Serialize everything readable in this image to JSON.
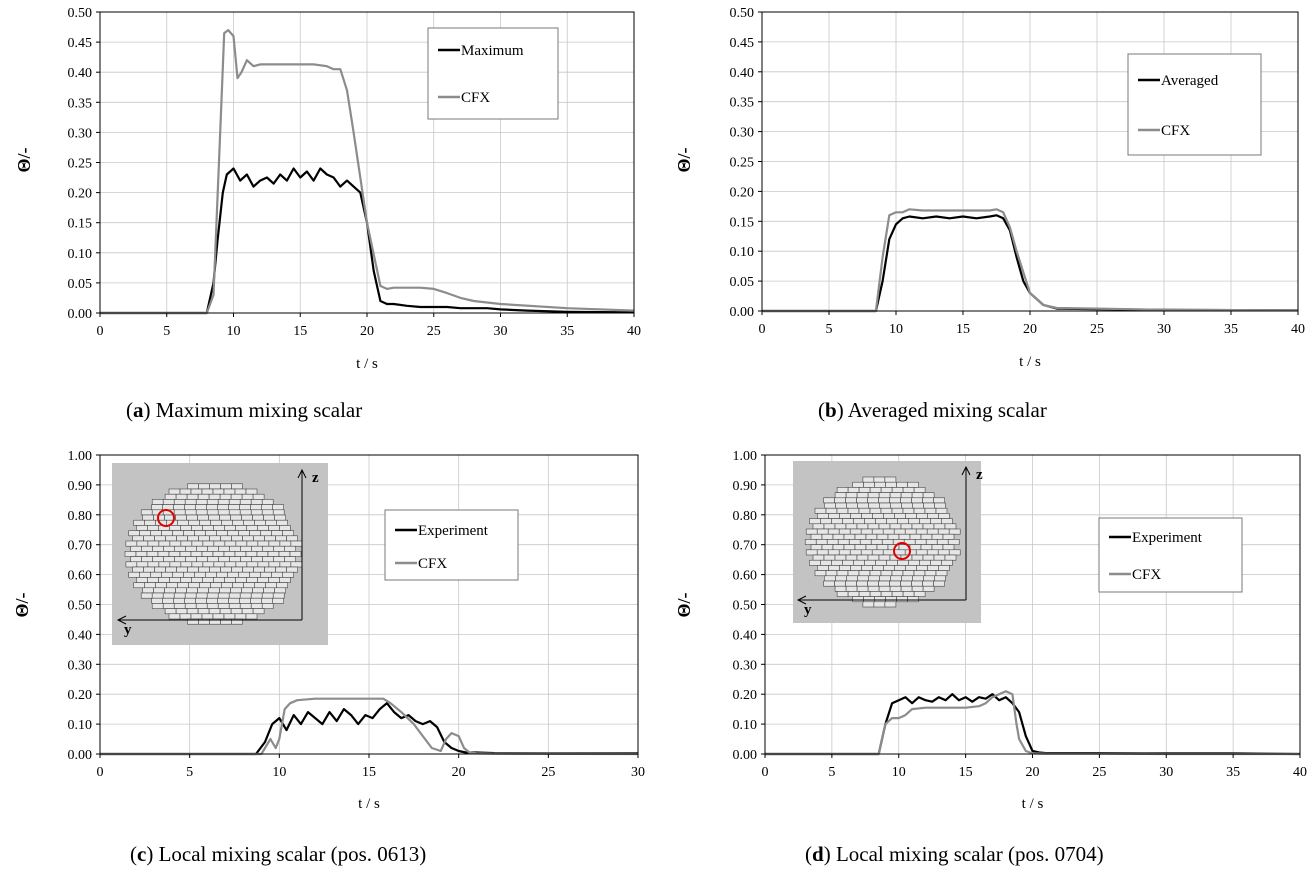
{
  "chart_data": [
    {
      "id": "a",
      "type": "line",
      "caption_letter": "a",
      "caption_text": "Maximum mixing scalar",
      "xlabel": "t / s",
      "ylabel": "Θ/-",
      "xlim": [
        0,
        40
      ],
      "ylim": [
        0,
        0.5
      ],
      "xticks": [
        0,
        5,
        10,
        15,
        20,
        25,
        30,
        35,
        40
      ],
      "yticks": [
        "0.00",
        "0.05",
        "0.10",
        "0.15",
        "0.20",
        "0.25",
        "0.30",
        "0.35",
        "0.40",
        "0.45",
        "0.50"
      ],
      "legend_position": "top-right",
      "series": [
        {
          "name": "Maximum",
          "color": "#000000",
          "x": [
            0,
            8,
            8.5,
            8.8,
            9.2,
            9.5,
            10,
            10.5,
            11,
            11.5,
            12,
            12.5,
            13,
            13.5,
            14,
            14.5,
            15,
            15.5,
            16,
            16.5,
            17,
            17.5,
            18,
            18.5,
            19,
            19.5,
            20,
            20.5,
            21,
            21.5,
            22,
            23,
            24,
            25,
            26,
            27,
            28,
            29,
            30,
            32,
            35,
            40
          ],
          "y": [
            0,
            0,
            0.05,
            0.12,
            0.2,
            0.23,
            0.24,
            0.22,
            0.23,
            0.21,
            0.22,
            0.225,
            0.215,
            0.23,
            0.22,
            0.24,
            0.225,
            0.235,
            0.22,
            0.24,
            0.23,
            0.225,
            0.21,
            0.22,
            0.21,
            0.2,
            0.15,
            0.07,
            0.02,
            0.015,
            0.015,
            0.012,
            0.01,
            0.01,
            0.01,
            0.008,
            0.008,
            0.008,
            0.006,
            0.004,
            0.002,
            0.001
          ]
        },
        {
          "name": "CFX",
          "color": "#8c8c8c",
          "x": [
            0,
            8,
            8.5,
            9,
            9.3,
            9.6,
            10,
            10.3,
            10.6,
            11,
            11.5,
            12,
            14,
            16,
            17,
            17.5,
            18,
            18.5,
            19,
            20,
            21,
            21.5,
            22,
            23,
            24,
            25,
            26,
            27,
            28,
            30,
            35,
            40
          ],
          "y": [
            0,
            0,
            0.03,
            0.3,
            0.465,
            0.47,
            0.46,
            0.39,
            0.4,
            0.42,
            0.41,
            0.413,
            0.413,
            0.413,
            0.41,
            0.405,
            0.405,
            0.37,
            0.3,
            0.15,
            0.045,
            0.04,
            0.042,
            0.042,
            0.042,
            0.04,
            0.033,
            0.025,
            0.02,
            0.015,
            0.008,
            0.004
          ]
        }
      ]
    },
    {
      "id": "b",
      "type": "line",
      "caption_letter": "b",
      "caption_text": "Averaged mixing scalar",
      "xlabel": "t / s",
      "ylabel": "Θ/-",
      "xlim": [
        0,
        40
      ],
      "ylim": [
        0,
        0.5
      ],
      "xticks": [
        0,
        5,
        10,
        15,
        20,
        25,
        30,
        35,
        40
      ],
      "yticks": [
        "0.00",
        "0.05",
        "0.10",
        "0.15",
        "0.20",
        "0.25",
        "0.30",
        "0.35",
        "0.40",
        "0.45",
        "0.50"
      ],
      "legend_position": "top-right",
      "series": [
        {
          "name": "Averaged",
          "color": "#000000",
          "x": [
            0,
            8.5,
            9,
            9.5,
            10,
            10.5,
            11,
            12,
            13,
            14,
            15,
            16,
            17,
            17.5,
            18,
            18.5,
            19,
            19.5,
            20,
            21,
            22,
            25,
            30,
            40
          ],
          "y": [
            0,
            0,
            0.05,
            0.12,
            0.145,
            0.155,
            0.158,
            0.155,
            0.158,
            0.155,
            0.158,
            0.155,
            0.158,
            0.16,
            0.155,
            0.135,
            0.09,
            0.05,
            0.03,
            0.01,
            0.004,
            0.003,
            0.002,
            0.001
          ]
        },
        {
          "name": "CFX",
          "color": "#8c8c8c",
          "x": [
            0,
            8.5,
            9,
            9.5,
            10,
            10.5,
            11,
            12,
            14,
            16,
            17,
            17.5,
            18,
            18.5,
            19,
            20,
            21,
            22,
            25,
            30,
            40
          ],
          "y": [
            0,
            0,
            0.09,
            0.16,
            0.165,
            0.165,
            0.17,
            0.168,
            0.168,
            0.168,
            0.168,
            0.17,
            0.165,
            0.14,
            0.1,
            0.03,
            0.01,
            0.005,
            0.004,
            0.002,
            0.001
          ]
        }
      ]
    },
    {
      "id": "c",
      "type": "line",
      "caption_letter": "c",
      "caption_text": "Local mixing scalar (pos. 0613)",
      "xlabel": "t / s",
      "ylabel": "Θ/-",
      "xlim": [
        0,
        30
      ],
      "ylim": [
        0,
        1.0
      ],
      "xticks": [
        0,
        5,
        10,
        15,
        20,
        25,
        30
      ],
      "yticks": [
        "0.00",
        "0.10",
        "0.20",
        "0.30",
        "0.40",
        "0.50",
        "0.60",
        "0.70",
        "0.80",
        "0.90",
        "1.00"
      ],
      "legend_position": "top-right",
      "inset": {
        "axis_y": "y",
        "axis_z": "z",
        "marker_color": "#e00000"
      },
      "series": [
        {
          "name": "Experiment",
          "color": "#000000",
          "x": [
            0,
            8.7,
            9.2,
            9.6,
            10,
            10.4,
            10.8,
            11.2,
            11.6,
            12,
            12.4,
            12.8,
            13.2,
            13.6,
            14,
            14.4,
            14.8,
            15.2,
            15.6,
            16,
            16.4,
            16.8,
            17.2,
            17.6,
            18,
            18.4,
            18.8,
            19.2,
            19.6,
            20,
            20.4,
            21,
            22,
            25,
            30
          ],
          "y": [
            0,
            0,
            0.04,
            0.1,
            0.12,
            0.08,
            0.13,
            0.1,
            0.14,
            0.12,
            0.1,
            0.14,
            0.11,
            0.15,
            0.13,
            0.1,
            0.13,
            0.12,
            0.15,
            0.17,
            0.14,
            0.12,
            0.13,
            0.11,
            0.1,
            0.11,
            0.09,
            0.04,
            0.02,
            0.01,
            0.005,
            0.005,
            0.003,
            0.002,
            0.002
          ]
        },
        {
          "name": "CFX",
          "color": "#8c8c8c",
          "x": [
            0,
            9,
            9.5,
            9.8,
            10,
            10.3,
            10.6,
            11,
            12,
            13,
            14,
            15,
            15.8,
            16.2,
            16.8,
            17.5,
            18,
            18.5,
            19,
            19.3,
            19.6,
            20,
            20.3,
            20.6,
            21,
            22,
            30
          ],
          "y": [
            0,
            0,
            0.05,
            0.02,
            0.05,
            0.15,
            0.17,
            0.18,
            0.185,
            0.185,
            0.185,
            0.185,
            0.185,
            0.17,
            0.14,
            0.1,
            0.06,
            0.02,
            0.01,
            0.05,
            0.07,
            0.06,
            0.02,
            0.005,
            0.002,
            0.001,
            0.0
          ]
        }
      ]
    },
    {
      "id": "d",
      "type": "line",
      "caption_letter": "d",
      "caption_text": "Local mixing scalar (pos. 0704)",
      "xlabel": "t / s",
      "ylabel": "Θ/-",
      "xlim": [
        0,
        40
      ],
      "ylim": [
        0,
        1.0
      ],
      "xticks": [
        0,
        5,
        10,
        15,
        20,
        25,
        30,
        35,
        40
      ],
      "yticks": [
        "0.00",
        "0.10",
        "0.20",
        "0.30",
        "0.40",
        "0.50",
        "0.60",
        "0.70",
        "0.80",
        "0.90",
        "1.00"
      ],
      "legend_position": "top-right",
      "inset": {
        "axis_y": "y",
        "axis_z": "z",
        "marker_color": "#e00000"
      },
      "series": [
        {
          "name": "Experiment",
          "color": "#000000",
          "x": [
            0,
            8.5,
            9,
            9.5,
            10,
            10.5,
            11,
            11.5,
            12,
            12.5,
            13,
            13.5,
            14,
            14.5,
            15,
            15.5,
            16,
            16.5,
            17,
            17.5,
            18,
            18.5,
            19,
            19.5,
            20,
            20.5,
            21,
            25,
            30,
            35,
            40
          ],
          "y": [
            0,
            0,
            0.1,
            0.17,
            0.18,
            0.19,
            0.17,
            0.19,
            0.18,
            0.175,
            0.19,
            0.18,
            0.2,
            0.18,
            0.19,
            0.175,
            0.19,
            0.185,
            0.2,
            0.18,
            0.19,
            0.17,
            0.14,
            0.06,
            0.01,
            0.005,
            0.003,
            0.003,
            0.002,
            0.002,
            0.0
          ]
        },
        {
          "name": "CFX",
          "color": "#8c8c8c",
          "x": [
            0,
            8.5,
            9,
            9.5,
            10,
            10.5,
            11,
            12,
            13,
            14,
            15,
            16,
            16.5,
            17,
            17.5,
            18,
            18.5,
            18.8,
            19,
            19.5,
            20,
            21,
            25,
            30,
            40
          ],
          "y": [
            0,
            0,
            0.1,
            0.12,
            0.12,
            0.13,
            0.15,
            0.155,
            0.155,
            0.155,
            0.155,
            0.16,
            0.17,
            0.19,
            0.2,
            0.21,
            0.2,
            0.1,
            0.05,
            0.01,
            0.002,
            0.001,
            0.001,
            0.0,
            0.0
          ]
        }
      ]
    }
  ]
}
